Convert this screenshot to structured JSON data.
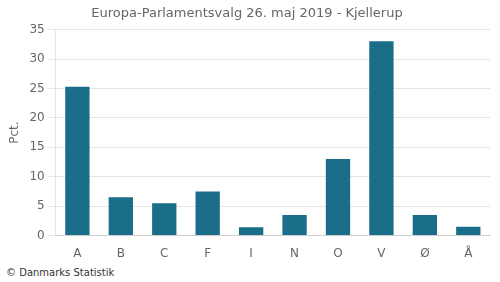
{
  "chart_data": {
    "type": "bar",
    "title": "Europa-Parlamentsvalg 26. maj 2019 - Kjellerup",
    "categories": [
      "A",
      "B",
      "C",
      "F",
      "I",
      "N",
      "O",
      "V",
      "Ø",
      "Å"
    ],
    "values": [
      25.3,
      6.5,
      5.5,
      7.5,
      1.4,
      3.5,
      13.0,
      33.0,
      3.5,
      1.5
    ],
    "color": "#1a6e8a",
    "ylabel": "Pct.",
    "ylim": [
      0,
      35
    ],
    "yticks": [
      0,
      5,
      10,
      15,
      20,
      25,
      30,
      35
    ],
    "grid": true,
    "footer": "© Danmarks Statistik"
  }
}
